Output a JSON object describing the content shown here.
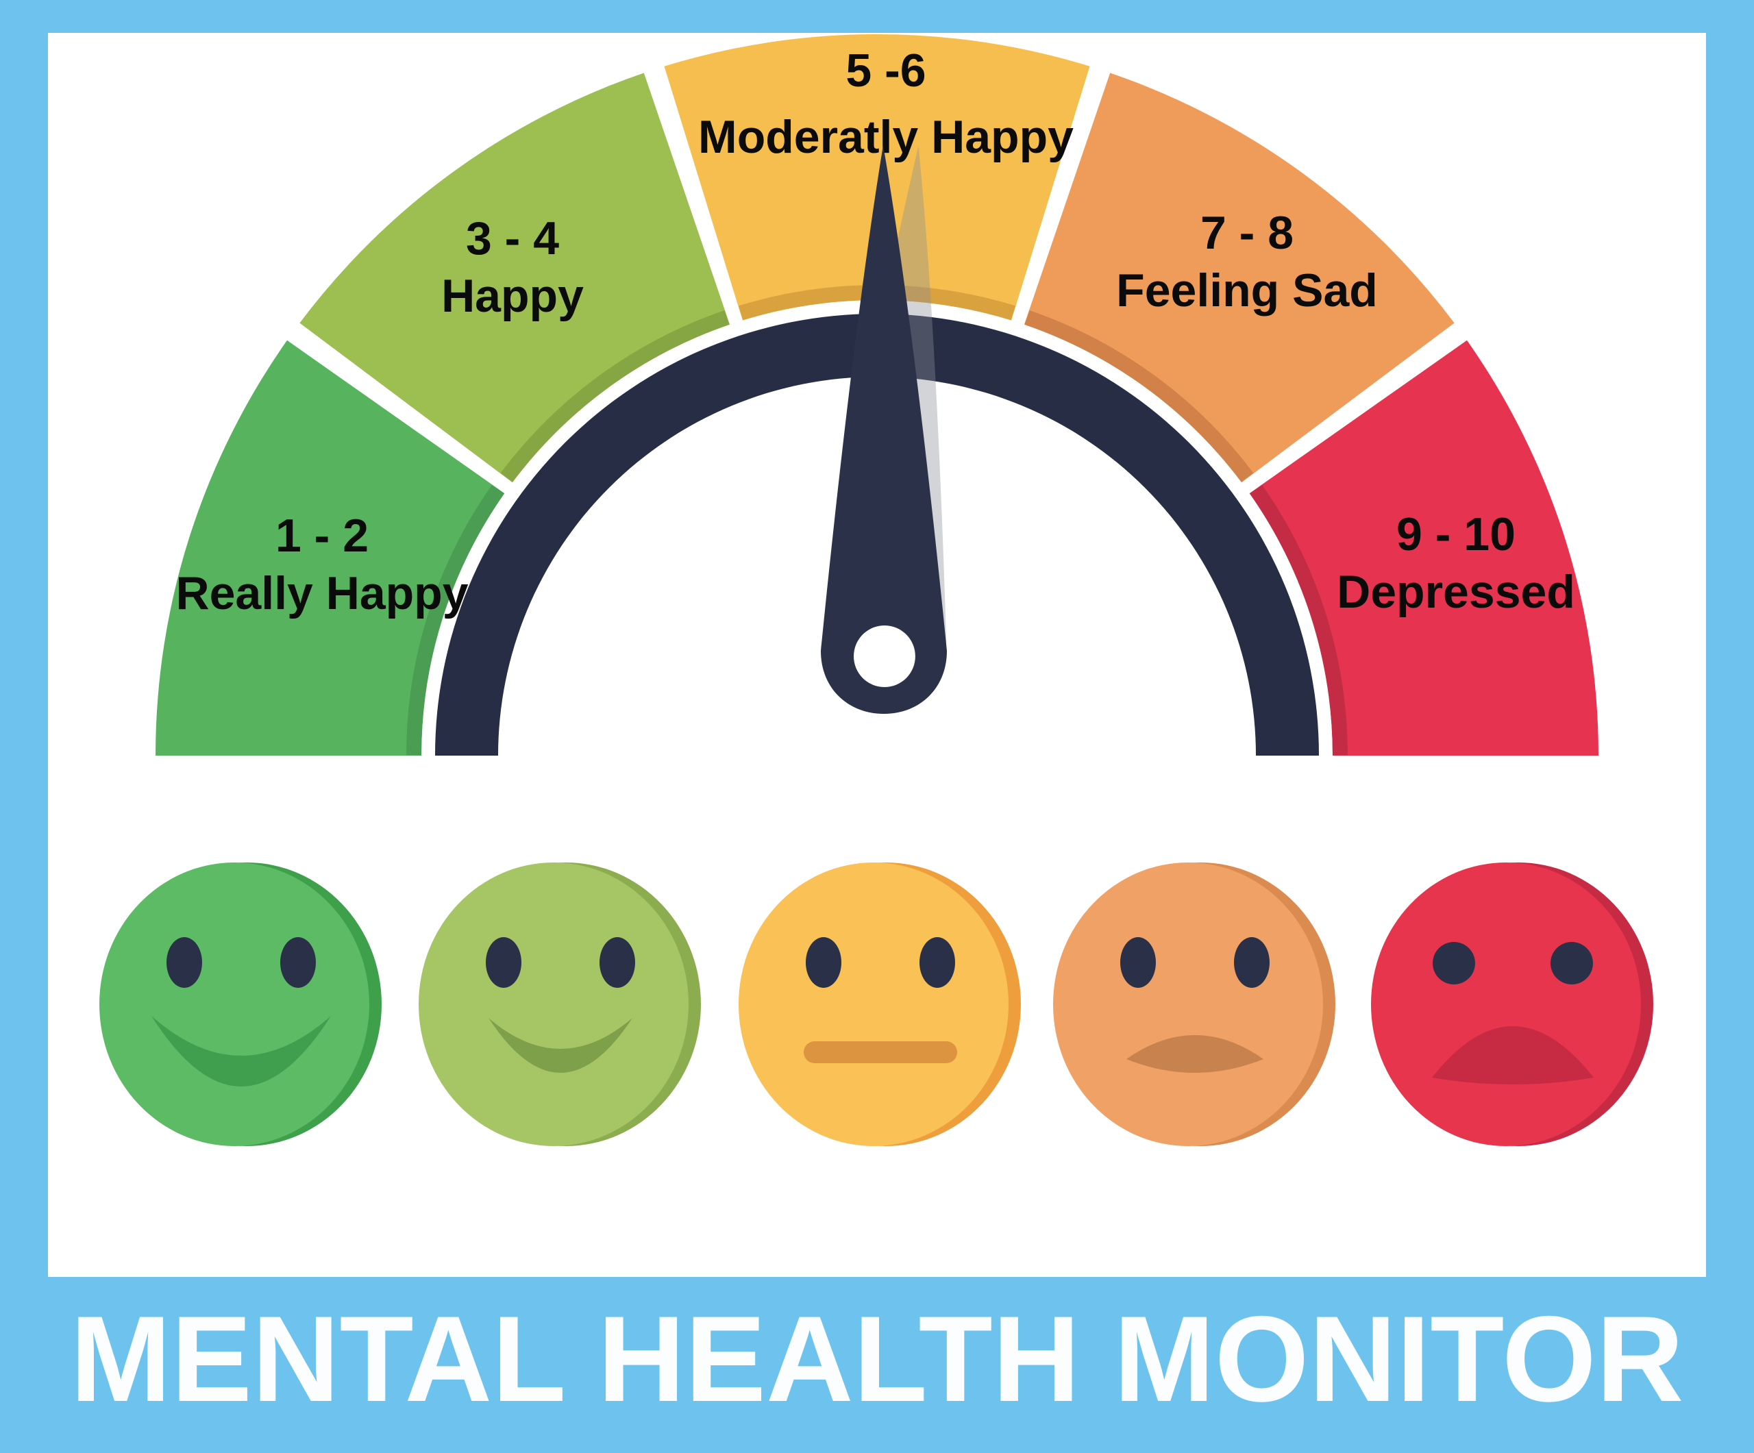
{
  "title_bar": {
    "text": "MENTAL HEALTH MONITOR",
    "text_color": "#FBFDFE",
    "band_color": "#6DC3ED"
  },
  "frame": {
    "border_color": "#6DC3ED",
    "background_color": "#FFFFFF"
  },
  "chart_data": {
    "type": "gauge",
    "title": "MENTAL HEALTH MONITOR",
    "scale_min": 1,
    "scale_max": 10,
    "arc_color": "#272D44",
    "needle": {
      "color": "#2B3148",
      "shadow_color": "#8A8D96",
      "points_to_segment": "5 -6 Moderatly Happy"
    },
    "label_color": "#0B0B0B",
    "segments": [
      {
        "range_label": "1 - 2",
        "mood_label": "Really Happy",
        "values": [
          1,
          2
        ],
        "color": "#57B35E",
        "edge_color": "#4A9D53"
      },
      {
        "range_label": "3 - 4",
        "mood_label": "Happy",
        "values": [
          3,
          4
        ],
        "color": "#9DBE50",
        "edge_color": "#86A644"
      },
      {
        "range_label": "5 -6",
        "mood_label": "Moderatly Happy",
        "values": [
          5,
          6
        ],
        "color": "#F6BE4E",
        "edge_color": "#D9A23F"
      },
      {
        "range_label": "7 - 8",
        "mood_label": "Feeling Sad",
        "values": [
          7,
          8
        ],
        "color": "#EF9C5B",
        "edge_color": "#D28148"
      },
      {
        "range_label": "9 - 10",
        "mood_label": "Depressed",
        "values": [
          9,
          10
        ],
        "color": "#E63450",
        "edge_color": "#C42B44"
      }
    ]
  },
  "faces": [
    {
      "mood": "really-happy",
      "color": "#5CBB64",
      "rim_color": "#3FA04C",
      "eye_color": "#2A3047",
      "mouth": "smile-big",
      "mouth_color": "#3F9F4E",
      "eye_shape": "oval"
    },
    {
      "mood": "happy",
      "color": "#A6C565",
      "rim_color": "#8CAC50",
      "eye_color": "#2A3047",
      "mouth": "smile",
      "mouth_color": "#7FA04B",
      "eye_shape": "oval"
    },
    {
      "mood": "neutral",
      "color": "#FAC156",
      "rim_color": "#EE9E3D",
      "eye_color": "#2A3047",
      "mouth": "neutral",
      "mouth_color": "#DD9440",
      "eye_shape": "oval"
    },
    {
      "mood": "sad",
      "color": "#F0A166",
      "rim_color": "#DB8A50",
      "eye_color": "#2A3047",
      "mouth": "frown",
      "mouth_color": "#C8824E",
      "eye_shape": "oval"
    },
    {
      "mood": "depressed",
      "color": "#E8354E",
      "rim_color": "#C62B43",
      "eye_color": "#2A3047",
      "mouth": "frown-big",
      "mouth_color": "#C62B43",
      "eye_shape": "round"
    }
  ]
}
